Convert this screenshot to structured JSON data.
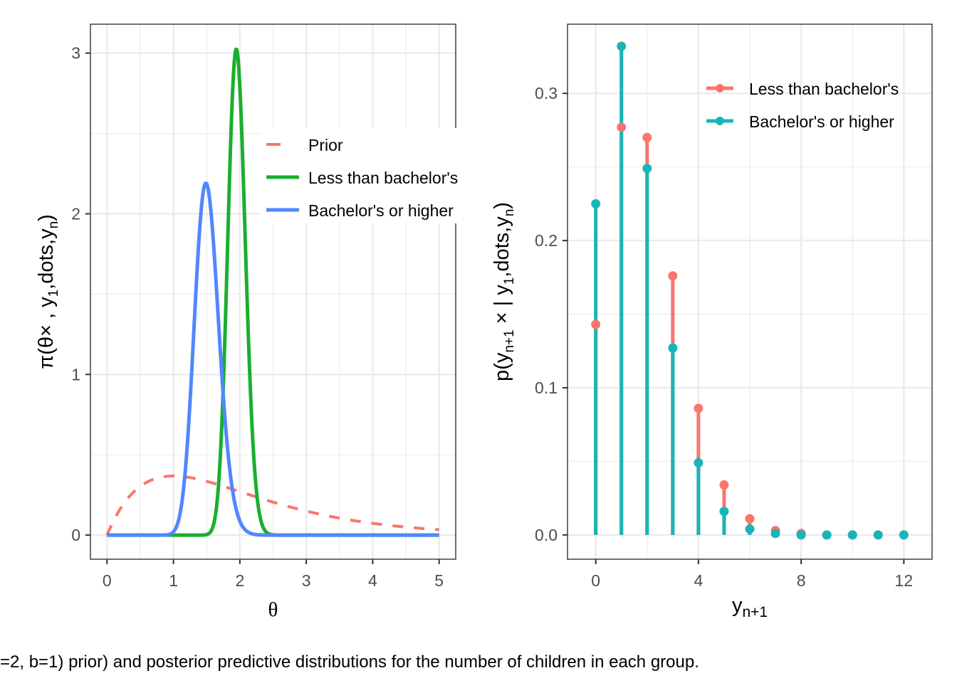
{
  "caption": "=2, b=1) prior) and posterior predictive distributions for the number of children in each group.",
  "chart_data": [
    {
      "type": "line",
      "panel": "left",
      "xlabel": "θ",
      "ylabel": "π(θ×, y1,dots,yn)",
      "ylabel_parts": {
        "main": "π(θ× , y",
        "sub1": "1",
        "mid": ",dots,y",
        "sub2": "n",
        "close": ")"
      },
      "xlim": [
        -0.25,
        5.25
      ],
      "ylim": [
        -0.15,
        3.18
      ],
      "xticks": [
        0,
        1,
        2,
        3,
        4,
        5
      ],
      "xtick_labels": [
        "0",
        "1",
        "2",
        "3",
        "4",
        "5"
      ],
      "yticks": [
        0,
        1,
        2,
        3
      ],
      "ytick_labels": [
        "0",
        "1",
        "2",
        "3"
      ],
      "x_minor": [
        0.5,
        1.5,
        2.5,
        3.5,
        4.5
      ],
      "y_minor": [
        0.5,
        1.5,
        2.5
      ],
      "grid": true,
      "legend": "center-right",
      "series": [
        {
          "name": "Prior",
          "color": "#F8766D",
          "dash": true,
          "distribution": "gamma",
          "shape": 2,
          "rate": 1
        },
        {
          "name": "Less than bachelor's",
          "color": "#1AAF2E",
          "dash": false,
          "distribution": "gamma",
          "shape": 219,
          "rate": 112
        },
        {
          "name": "Bachelor's or higher",
          "color": "#5087FF",
          "dash": false,
          "distribution": "gamma",
          "shape": 68,
          "rate": 45
        }
      ],
      "x_range": [
        0,
        5
      ]
    },
    {
      "type": "lollipop",
      "panel": "right",
      "xlabel": "y_{n+1}",
      "xlabel_parts": {
        "main": "y",
        "sub": "n+1"
      },
      "ylabel": "p(y_{n+1} × | y1,dots,yn)",
      "ylabel_parts": {
        "p1": "p(y",
        "sub0": "n+1",
        "p2": " × | y",
        "sub1": "1",
        "p3": ",dots,y",
        "sub2": "n",
        "close": ")"
      },
      "xlim": [
        -1.1,
        13.1
      ],
      "ylim": [
        -0.0165,
        0.347
      ],
      "xticks": [
        0,
        4,
        8,
        12
      ],
      "xtick_labels": [
        "0",
        "4",
        "8",
        "12"
      ],
      "yticks": [
        0.0,
        0.1,
        0.2,
        0.3
      ],
      "ytick_labels": [
        "0.0",
        "0.1",
        "0.2",
        "0.3"
      ],
      "x_minor": [
        2,
        6,
        10
      ],
      "y_minor": [
        0.05,
        0.15,
        0.25
      ],
      "grid": true,
      "legend": "top-right",
      "x": [
        0,
        1,
        2,
        3,
        4,
        5,
        6,
        7,
        8,
        9,
        10,
        11,
        12
      ],
      "series": [
        {
          "name": "Less than bachelor's",
          "color": "#F8766D",
          "values": [
            0.143,
            0.277,
            0.27,
            0.176,
            0.086,
            0.034,
            0.011,
            0.003,
            0.001,
            0.0,
            0.0,
            0.0,
            0.0
          ]
        },
        {
          "name": "Bachelor's or higher",
          "color": "#19B5B6",
          "values": [
            0.225,
            0.332,
            0.249,
            0.127,
            0.049,
            0.016,
            0.004,
            0.001,
            0.0,
            0.0,
            0.0,
            0.0,
            0.0
          ]
        }
      ]
    }
  ]
}
